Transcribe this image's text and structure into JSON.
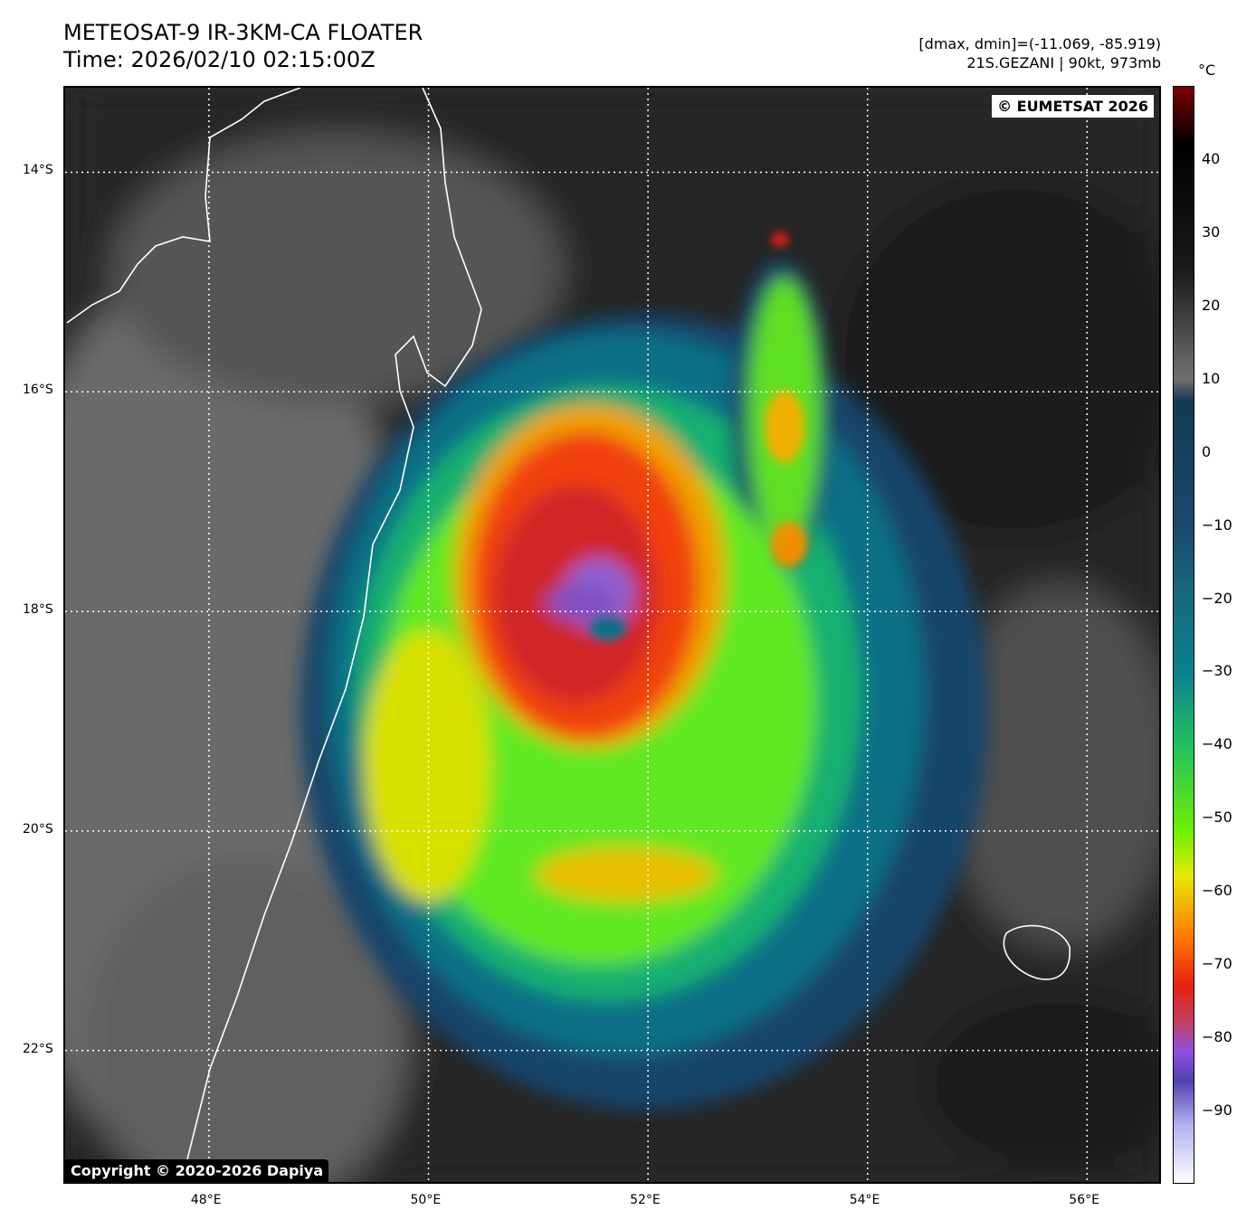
{
  "header": {
    "title": "METEOSAT-9 IR-3KM-CA FLOATER",
    "time": "Time: 2026/02/10 02:15:00Z",
    "range": "[dmax, dmin]=(-11.069, -85.919)",
    "storm": "21S.GEZANI | 90kt, 973mb"
  },
  "map": {
    "copyright_top": "© EUMETSAT 2026",
    "copyright_bottom": "Copyright © 2020-2026 Dapiya",
    "lon_range": [
      46.69,
      56.69
    ],
    "lat_range": [
      -13.23,
      -23.23
    ],
    "lon_ticks": [
      {
        "v": 48,
        "label": "48°E"
      },
      {
        "v": 50,
        "label": "50°E"
      },
      {
        "v": 52,
        "label": "52°E"
      },
      {
        "v": 54,
        "label": "54°E"
      },
      {
        "v": 56,
        "label": "56°E"
      }
    ],
    "lat_ticks": [
      {
        "v": -14,
        "label": "14°S"
      },
      {
        "v": -16,
        "label": "16°S"
      },
      {
        "v": -18,
        "label": "18°S"
      },
      {
        "v": -20,
        "label": "20°S"
      },
      {
        "v": -22,
        "label": "22°S"
      }
    ]
  },
  "colorbar": {
    "unit": "°C",
    "range": [
      -100,
      50
    ],
    "ticks": [
      {
        "v": 40,
        "label": "40"
      },
      {
        "v": 30,
        "label": "30"
      },
      {
        "v": 20,
        "label": "20"
      },
      {
        "v": 10,
        "label": "10"
      },
      {
        "v": 0,
        "label": "0"
      },
      {
        "v": -10,
        "label": "−10"
      },
      {
        "v": -20,
        "label": "−20"
      },
      {
        "v": -30,
        "label": "−30"
      },
      {
        "v": -40,
        "label": "−40"
      },
      {
        "v": -50,
        "label": "−50"
      },
      {
        "v": -60,
        "label": "−60"
      },
      {
        "v": -70,
        "label": "−70"
      },
      {
        "v": -80,
        "label": "−80"
      },
      {
        "v": -90,
        "label": "−90"
      }
    ],
    "stops": [
      {
        "v": 50,
        "c": "#7a0000"
      },
      {
        "v": 42,
        "c": "#000000"
      },
      {
        "v": 25,
        "c": "#1a1a1a"
      },
      {
        "v": 10,
        "c": "#707070"
      },
      {
        "v": 7,
        "c": "#123a50"
      },
      {
        "v": -10,
        "c": "#1a4870"
      },
      {
        "v": -20,
        "c": "#166a80"
      },
      {
        "v": -30,
        "c": "#0a8090"
      },
      {
        "v": -40,
        "c": "#20c060"
      },
      {
        "v": -52,
        "c": "#70f000"
      },
      {
        "v": -58,
        "c": "#e8e800"
      },
      {
        "v": -67,
        "c": "#ff7000"
      },
      {
        "v": -73,
        "c": "#e82010"
      },
      {
        "v": -78,
        "c": "#c04060"
      },
      {
        "v": -82,
        "c": "#9050e0"
      },
      {
        "v": -86,
        "c": "#5040b0"
      },
      {
        "v": -92,
        "c": "#b0b0f0"
      },
      {
        "v": -100,
        "c": "#ffffff"
      }
    ]
  }
}
